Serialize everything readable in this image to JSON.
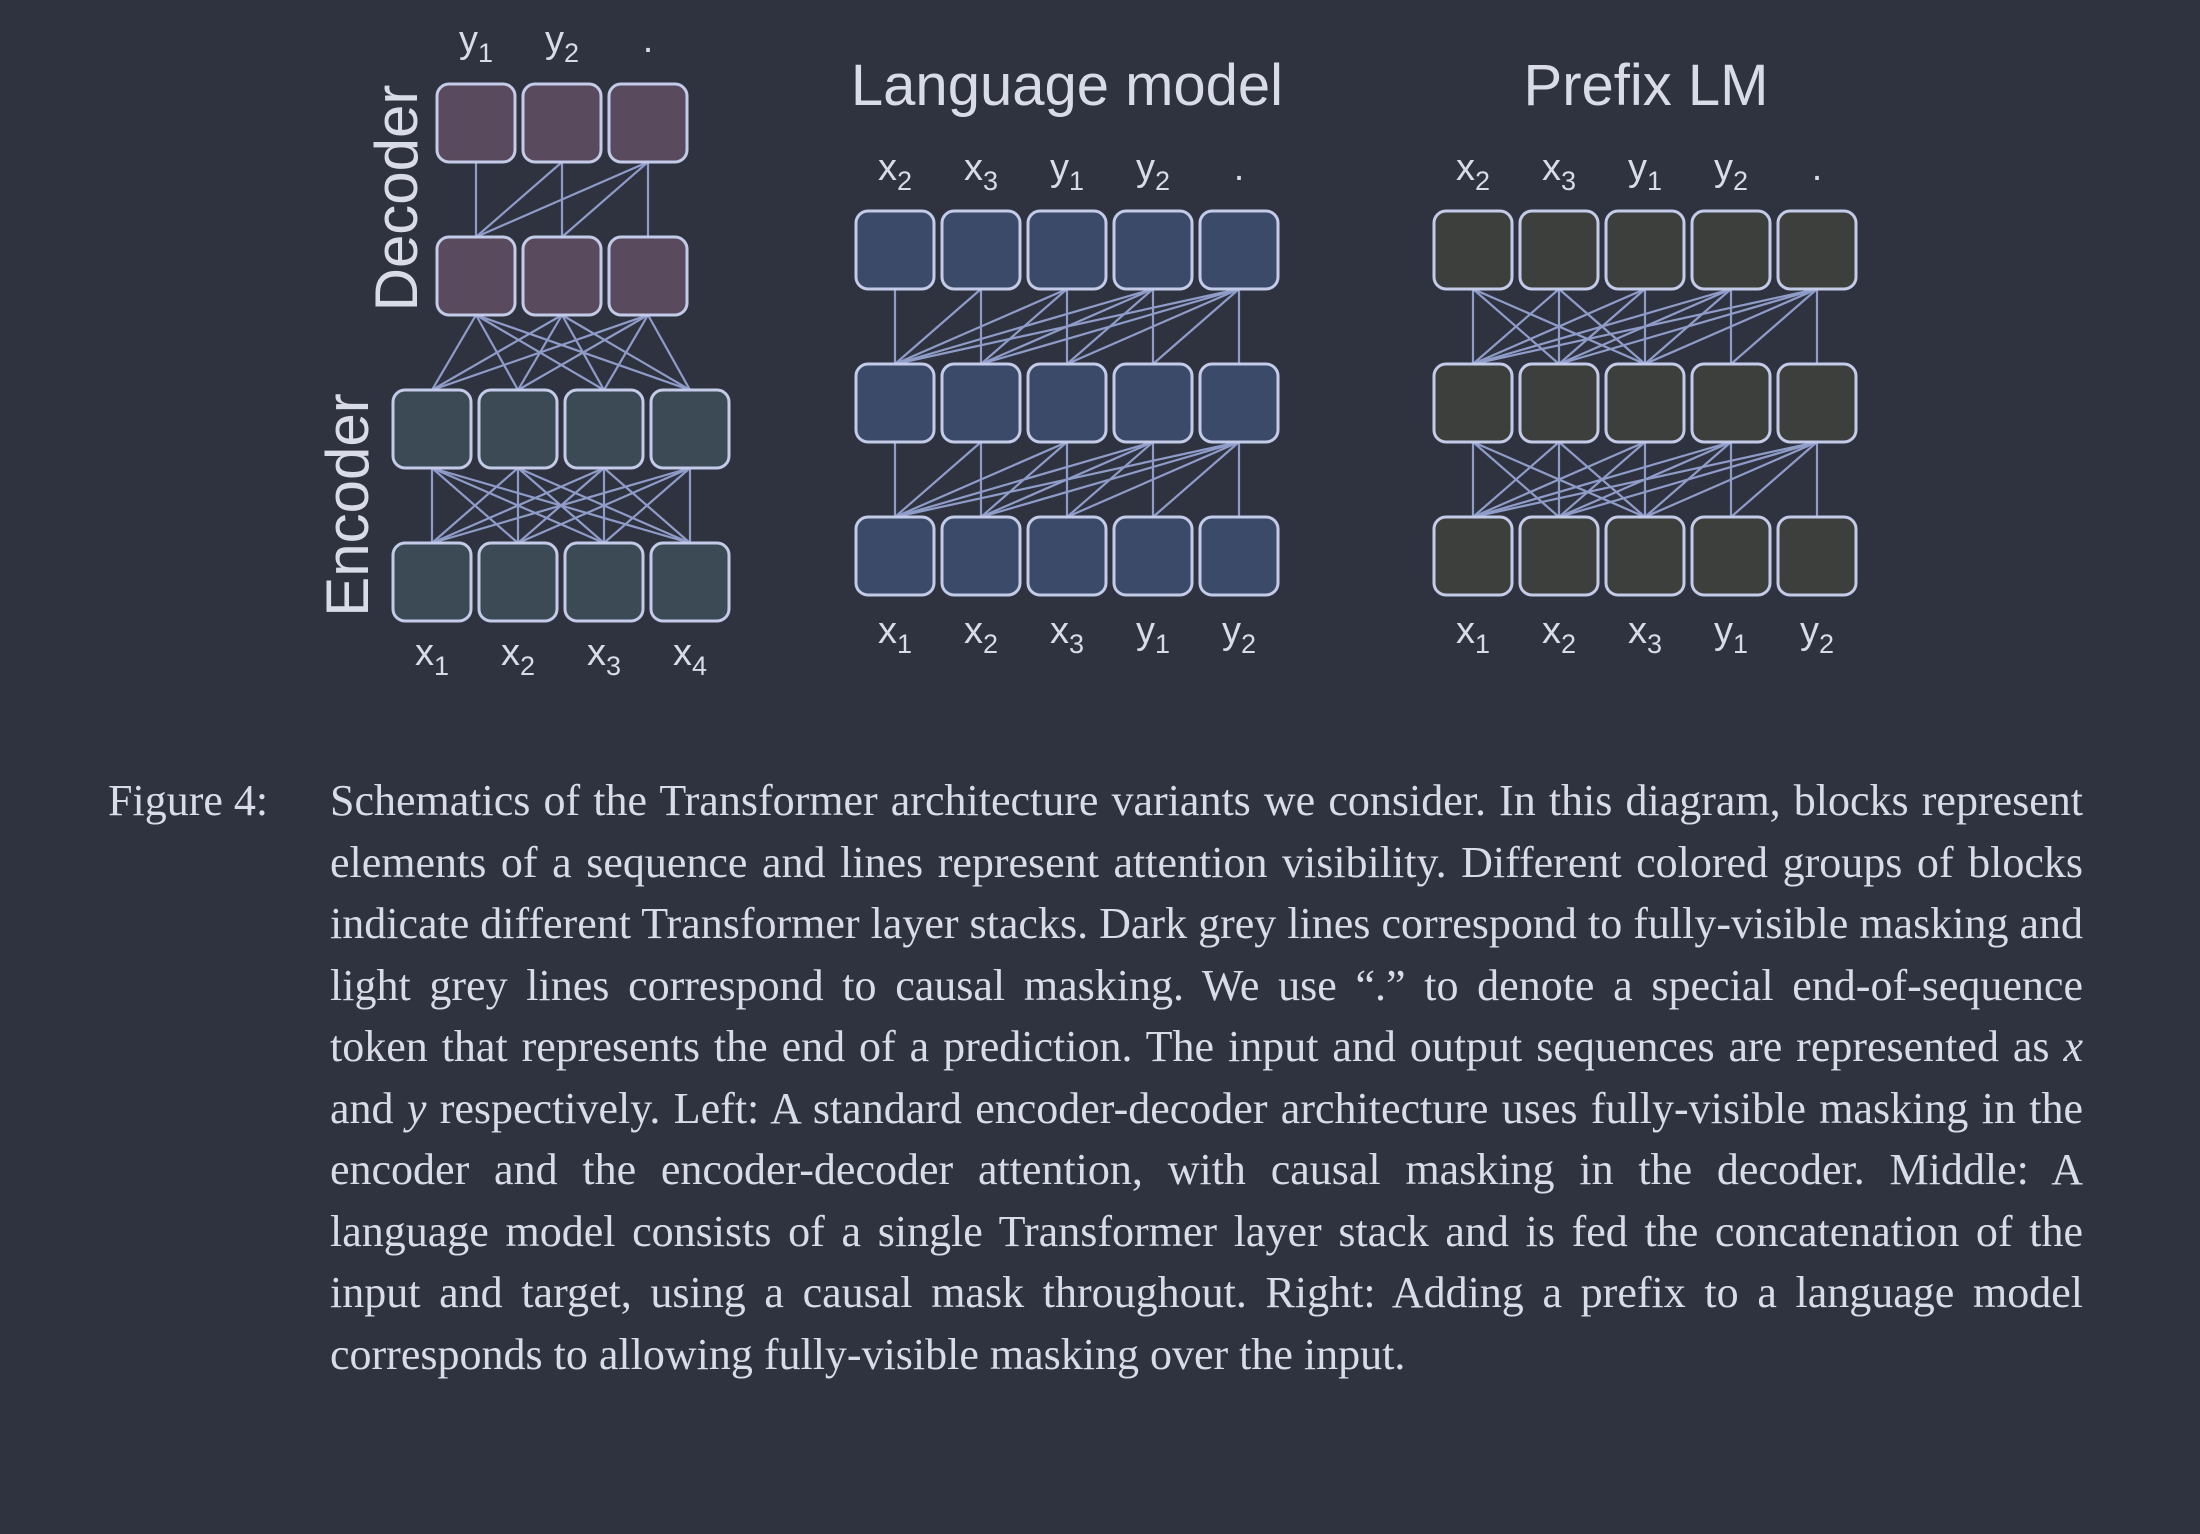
{
  "colors": {
    "background": "#2f3340",
    "text": "#d9dce6",
    "box_border": "#c3cbe8",
    "line": "#8f9cc8",
    "decoder_fill": "#5a4a5e",
    "encoder_fill": "#3b4a54",
    "lm_fill": "#3a4a68",
    "prefix_fill": "#3c3f3b"
  },
  "panels": {
    "encoder_decoder": {
      "decoder_label": "Decoder",
      "encoder_label": "Encoder",
      "outputs": [
        {
          "base": "y",
          "sub": "1"
        },
        {
          "base": "y",
          "sub": "2"
        },
        {
          "base": ".",
          "sub": ""
        }
      ],
      "inputs": [
        {
          "base": "x",
          "sub": "1"
        },
        {
          "base": "x",
          "sub": "2"
        },
        {
          "base": "x",
          "sub": "3"
        },
        {
          "base": "x",
          "sub": "4"
        }
      ]
    },
    "language_model": {
      "title": "Language model",
      "outputs": [
        {
          "base": "x",
          "sub": "2"
        },
        {
          "base": "x",
          "sub": "3"
        },
        {
          "base": "y",
          "sub": "1"
        },
        {
          "base": "y",
          "sub": "2"
        },
        {
          "base": ".",
          "sub": ""
        }
      ],
      "inputs": [
        {
          "base": "x",
          "sub": "1"
        },
        {
          "base": "x",
          "sub": "2"
        },
        {
          "base": "x",
          "sub": "3"
        },
        {
          "base": "y",
          "sub": "1"
        },
        {
          "base": "y",
          "sub": "2"
        }
      ]
    },
    "prefix_lm": {
      "title": "Prefix LM",
      "prefix_length": 3,
      "outputs": [
        {
          "base": "x",
          "sub": "2"
        },
        {
          "base": "x",
          "sub": "3"
        },
        {
          "base": "y",
          "sub": "1"
        },
        {
          "base": "y",
          "sub": "2"
        },
        {
          "base": ".",
          "sub": ""
        }
      ],
      "inputs": [
        {
          "base": "x",
          "sub": "1"
        },
        {
          "base": "x",
          "sub": "2"
        },
        {
          "base": "x",
          "sub": "3"
        },
        {
          "base": "y",
          "sub": "1"
        },
        {
          "base": "y",
          "sub": "2"
        }
      ]
    }
  },
  "caption": {
    "label": "Figure 4:",
    "body_before_x": "Schematics of the Transformer architecture variants we consider. In this diagram, blocks represent elements of a sequence and lines represent attention visibility. Different colored groups of blocks indicate different Transformer layer stacks. Dark grey lines correspond to fully-visible masking and light grey lines correspond to causal masking. We use “.” to denote a special end-of-sequence token that represents the end of a prediction. The input and output sequences are represented as",
    "var_x": "x",
    "and_word": "and",
    "var_y": "y",
    "body_after_y": "respectively. Left: A standard encoder-decoder architecture uses fully-visible masking in the encoder and the encoder-decoder attention, with causal masking in the decoder. Middle: A language model consists of a single Transformer layer stack and is fed the concatenation of the input and target, using a causal mask throughout. Right: Adding a prefix to a language model corresponds to allowing fully-visible masking over the input."
  }
}
